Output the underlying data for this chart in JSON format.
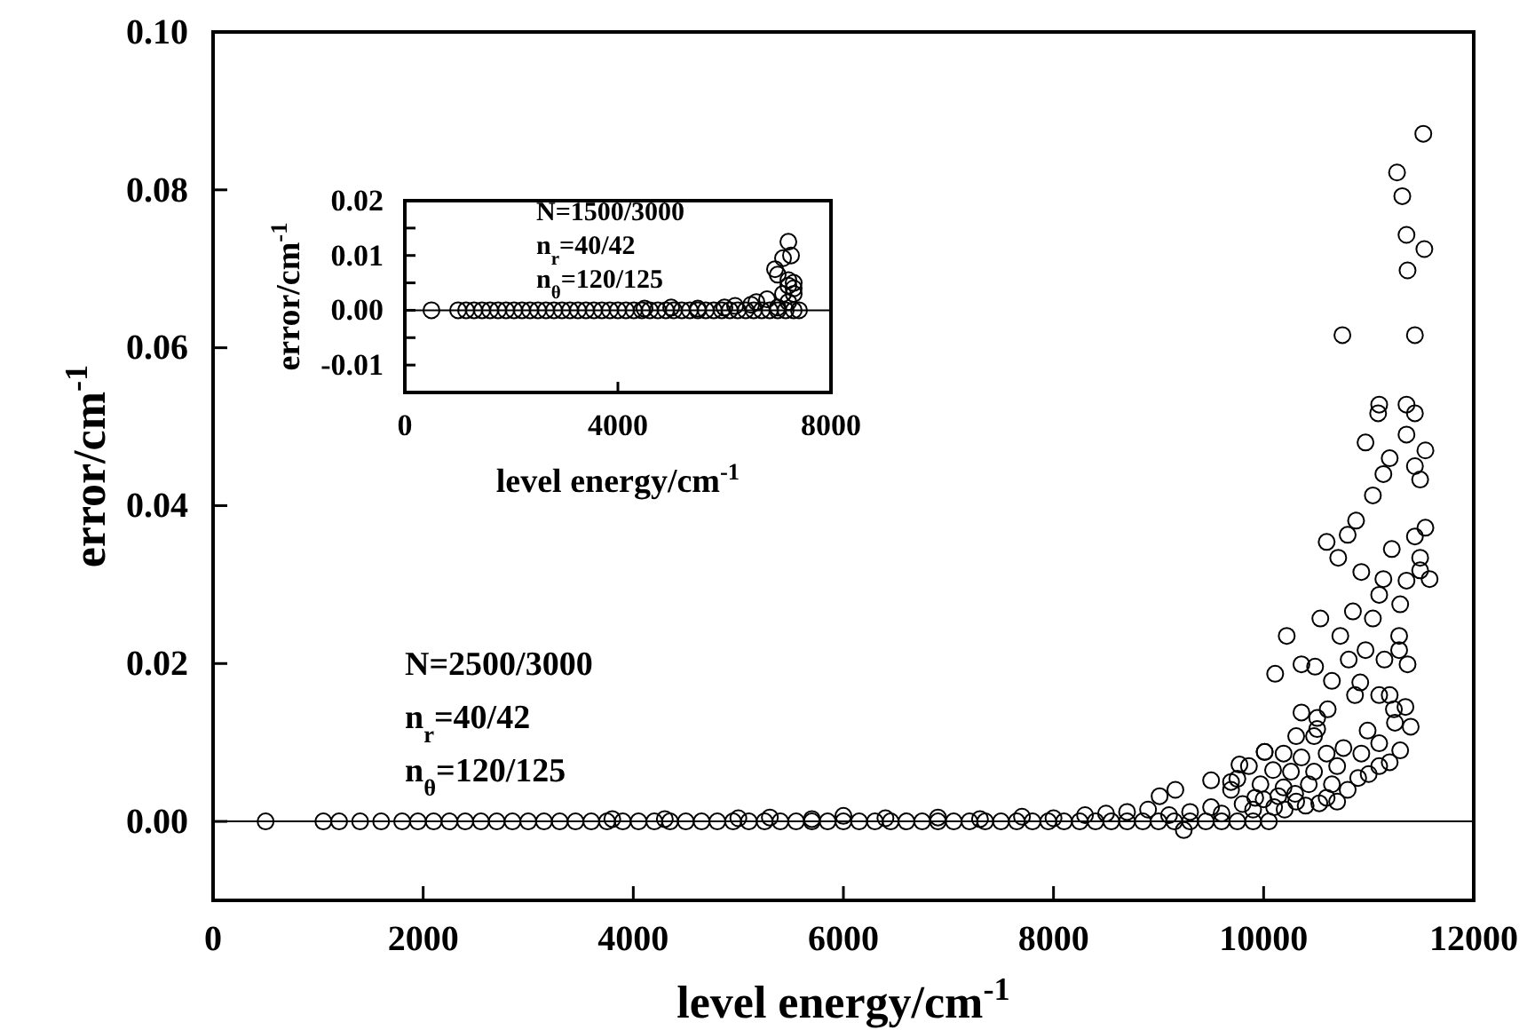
{
  "chart_data": [
    {
      "type": "scatter",
      "xlabel": "level energy/cm$^{-1}$",
      "ylabel": "error/cm$^{-1}$",
      "annotations": [
        "N=2500/3000",
        "n$_{r}$=40/42",
        "n$_{θ}$=120/125"
      ],
      "x": [
        500,
        1050,
        1200,
        1400,
        1600,
        1800,
        1950,
        2100,
        2250,
        2400,
        2550,
        2700,
        2850,
        3000,
        3150,
        3300,
        3450,
        3600,
        3750,
        3900,
        4050,
        4200,
        4350,
        4500,
        4650,
        4800,
        4950,
        5100,
        5250,
        5400,
        5550,
        5700,
        5850,
        6000,
        6150,
        6300,
        6450,
        6600,
        6750,
        6900,
        7050,
        7200,
        7350,
        7500,
        7650,
        7800,
        7950,
        8100,
        8250,
        8400,
        8550,
        8700,
        8850,
        9000,
        9150,
        9300,
        9450,
        9600,
        9750,
        9900,
        10050,
        3800,
        4300,
        5000,
        5300,
        5700,
        6000,
        6400,
        6900,
        7300,
        7700,
        8000,
        8300,
        8500,
        8700,
        8900,
        9100,
        9300,
        9500,
        9600,
        9800,
        9900,
        10000,
        10100,
        10200,
        10300,
        10400,
        10600,
        10700,
        10800,
        10900,
        11000,
        11100,
        11200,
        11300,
        11400,
        11250,
        11350,
        9240,
        9010,
        9160,
        9500,
        9690,
        9770,
        10010,
        10510,
        10530,
        9750,
        9970,
        10190,
        10430,
        10650,
        9690,
        9920,
        10140,
        10310,
        9860,
        10090,
        10260,
        10480,
        10700,
        10010,
        10190,
        10360,
        10600,
        10760,
        10930,
        10310,
        10480,
        10360,
        10510,
        10610,
        10870,
        11100,
        11200,
        11240,
        11100,
        10990,
        10110,
        10360,
        10490,
        10810,
        10650,
        11150,
        11370,
        10920,
        10220,
        10730,
        11290,
        10970,
        11290,
        11040,
        10540,
        10850,
        11300,
        11100,
        11140,
        11360,
        11580,
        11490,
        10930,
        11490,
        11220,
        11440,
        11540,
        10710,
        10600,
        10800,
        10880,
        11040,
        11490,
        11140,
        11440,
        11540,
        11200,
        10970,
        11360,
        11440,
        11090,
        11100,
        11360,
        10750,
        11440,
        11370,
        11530,
        11360,
        11320,
        11270,
        11520
      ],
      "values": [
        0,
        0,
        0,
        0,
        0,
        0,
        0,
        0,
        0,
        0,
        0,
        0,
        0,
        0,
        0,
        0,
        0,
        0,
        0,
        0,
        0,
        0,
        0,
        0,
        0,
        0,
        0,
        0,
        0,
        0,
        0,
        0,
        0,
        0,
        0,
        0,
        0,
        0,
        0,
        0,
        0,
        0,
        0,
        0,
        0,
        0,
        0,
        0,
        0,
        0,
        0,
        0,
        0,
        0,
        0,
        0,
        0,
        0,
        0,
        0,
        0,
        0.0003,
        0.0003,
        0.0004,
        0.0005,
        0.0003,
        0.0007,
        0.0004,
        0.0005,
        0.0003,
        0.0006,
        0.0004,
        0.0008,
        0.001,
        0.0012,
        0.0015,
        0.0008,
        0.0012,
        0.0018,
        0.001,
        0.0022,
        0.0015,
        0.0028,
        0.0018,
        0.0015,
        0.0035,
        0.002,
        0.003,
        0.0025,
        0.004,
        0.0055,
        0.006,
        0.007,
        0.0075,
        0.009,
        0.012,
        0.0125,
        0.0145,
        -0.0011,
        0.0032,
        0.004,
        0.0052,
        0.005,
        0.0072,
        0.0088,
        0.0117,
        0.0023,
        0.0054,
        0.0047,
        0.0043,
        0.0047,
        0.0047,
        0.004,
        0.003,
        0.0032,
        0.0025,
        0.007,
        0.0065,
        0.0063,
        0.0063,
        0.007,
        0.0088,
        0.0086,
        0.0081,
        0.0086,
        0.0093,
        0.0086,
        0.0108,
        0.0108,
        0.0138,
        0.0131,
        0.0142,
        0.016,
        0.016,
        0.016,
        0.0142,
        0.0099,
        0.0115,
        0.0187,
        0.0199,
        0.0196,
        0.0205,
        0.0178,
        0.0205,
        0.0199,
        0.0176,
        0.0235,
        0.0235,
        0.0235,
        0.0217,
        0.0217,
        0.0257,
        0.0257,
        0.0266,
        0.0275,
        0.0287,
        0.0307,
        0.0305,
        0.0307,
        0.0318,
        0.0316,
        0.0334,
        0.0345,
        0.0361,
        0.0372,
        0.0334,
        0.0354,
        0.0363,
        0.0381,
        0.0413,
        0.0433,
        0.044,
        0.045,
        0.047,
        0.046,
        0.048,
        0.049,
        0.0517,
        0.0517,
        0.0528,
        0.0528,
        0.0616,
        0.0616,
        0.0698,
        0.0725,
        0.0743,
        0.0792,
        0.0822,
        0.0871
      ],
      "color": "#000000",
      "marker": "circle",
      "xlim": [
        0,
        12000
      ],
      "xticks": [
        0,
        2000,
        4000,
        6000,
        8000,
        10000,
        12000
      ],
      "ylim": [
        -0.01,
        0.1
      ],
      "yticks": [
        {
          "value": 0,
          "label": "0.00"
        },
        {
          "value": 0.02,
          "label": "0.02"
        },
        {
          "value": 0.04,
          "label": "0.04"
        },
        {
          "value": 0.06,
          "label": "0.06"
        },
        {
          "value": 0.08,
          "label": "0.08"
        },
        {
          "value": 0.1,
          "label": "0.10"
        }
      ],
      "ref_lines": [
        {
          "axis": "y",
          "value": 0,
          "color": "#000000"
        }
      ]
    },
    {
      "type": "scatter",
      "xlabel": "level energy/cm$^{-1}$",
      "ylabel": "error/cm$^{-1}$",
      "annotations": [
        "N=1500/3000",
        "n$_{r}$=40/42",
        "n$_{θ}$=120/125"
      ],
      "x": [
        500,
        1000,
        1150,
        1300,
        1450,
        1600,
        1750,
        1900,
        2050,
        2200,
        2350,
        2500,
        2650,
        2800,
        2950,
        3100,
        3250,
        3400,
        3550,
        3700,
        3850,
        4000,
        4150,
        4300,
        4450,
        4600,
        4750,
        4900,
        5050,
        5200,
        5350,
        5500,
        5650,
        5800,
        5950,
        6100,
        6250,
        6400,
        6550,
        6700,
        6850,
        7000,
        7150,
        7300,
        7400,
        4500,
        5000,
        5500,
        6000,
        6200,
        6500,
        6600,
        6800,
        7000,
        7100,
        7200,
        7300,
        7300,
        7200,
        7000,
        7300,
        7200,
        6950,
        7100,
        7250,
        7200
      ],
      "values": [
        0,
        0,
        0,
        0,
        0,
        0,
        0,
        0,
        0,
        0,
        0,
        0,
        0,
        0,
        0,
        0,
        0,
        0,
        0,
        0,
        0,
        0,
        0,
        0,
        0,
        0,
        0,
        0,
        0,
        0,
        0,
        0,
        0,
        0,
        0,
        0,
        0,
        0,
        0,
        0,
        0,
        0,
        0,
        0,
        0,
        0.0003,
        0.0005,
        0.0003,
        0.0005,
        0.0008,
        0.001,
        0.0015,
        0.002,
        0.0005,
        0.003,
        0.0015,
        0.003,
        0.004,
        0.0055,
        0.0065,
        0.005,
        0.0045,
        0.0075,
        0.0095,
        0.01,
        0.0125
      ],
      "color": "#000000",
      "marker": "circle",
      "xlim": [
        0,
        8000
      ],
      "xticks": [
        0,
        4000,
        8000
      ],
      "ylim": [
        -0.015,
        0.02
      ],
      "yticks": [
        {
          "value": -0.01,
          "label": "-0.01"
        },
        {
          "value": -0.005,
          "label": null
        },
        {
          "value": 0,
          "label": "0.00"
        },
        {
          "value": 0.005,
          "label": null
        },
        {
          "value": 0.01,
          "label": "0.01"
        },
        {
          "value": 0.015,
          "label": null
        },
        {
          "value": 0.02,
          "label": "0.02"
        }
      ],
      "ref_lines": [
        {
          "axis": "y",
          "value": 0,
          "color": "#000000"
        }
      ]
    }
  ]
}
